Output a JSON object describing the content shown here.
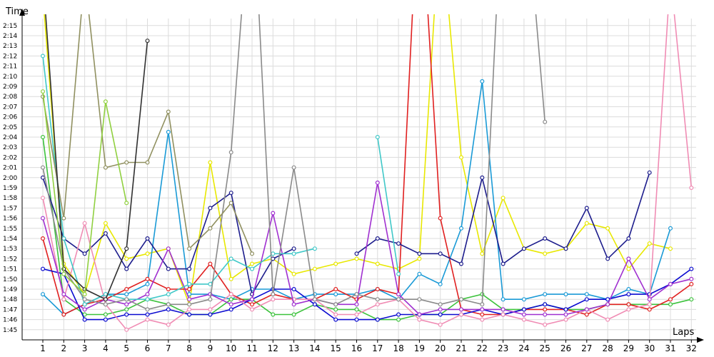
{
  "chart_data": {
    "type": "line",
    "xlabel": "Laps",
    "ylabel": "Time",
    "x": [
      1,
      2,
      3,
      4,
      5,
      6,
      7,
      8,
      9,
      10,
      11,
      12,
      13,
      14,
      15,
      16,
      17,
      18,
      19,
      20,
      21,
      22,
      23,
      24,
      25,
      26,
      27,
      28,
      29,
      30,
      31,
      32
    ],
    "y_ticks": [
      "1:45",
      "1:46",
      "1:47",
      "1:48",
      "1:49",
      "1:50",
      "1:51",
      "1:52",
      "1:53",
      "1:54",
      "1:55",
      "1:56",
      "1:57",
      "1:58",
      "1:59",
      "2:00",
      "2:01",
      "2:02",
      "2:03",
      "2:04",
      "2:05",
      "2:06",
      "2:07",
      "2:08",
      "2:09",
      "2:10",
      "2:11",
      "2:12",
      "2:13",
      "2:14",
      "2:15"
    ],
    "ylim_seconds": [
      104,
      136
    ],
    "grid": true,
    "series": [
      {
        "color": "#e8e800",
        "values": [
          138,
          111.5,
          108.5,
          115.5,
          112,
          112.5,
          113,
          107.5,
          121.5,
          110,
          111.5,
          112,
          110.5,
          111,
          111.5,
          112,
          111.5,
          111,
          112,
          146,
          122,
          112.5,
          118,
          113,
          112.5,
          113,
          115.5,
          115,
          111,
          113.5,
          113,
          null
        ]
      },
      {
        "color": "#1a9ad6",
        "values": [
          108.5,
          106.5,
          107.5,
          108.5,
          108.5,
          109.5,
          124.5,
          108.5,
          108.5,
          108,
          109,
          109,
          108,
          108.5,
          108.5,
          108.5,
          109,
          108,
          110.5,
          109.5,
          115,
          129.5,
          108,
          108,
          108.5,
          108.5,
          108.5,
          108,
          109,
          108.5,
          115,
          null
        ]
      },
      {
        "color": "#3cc23c",
        "values": [
          124,
          108,
          106.5,
          106.5,
          107,
          108,
          107.5,
          106.5,
          106.5,
          108,
          108,
          106.5,
          106.5,
          107.5,
          107,
          107,
          106,
          106,
          106.5,
          106.5,
          108,
          108.5,
          107,
          107,
          107.5,
          107,
          107,
          107.5,
          107.5,
          107.5,
          107.5,
          108
        ]
      },
      {
        "color": "#e02020",
        "values": [
          114,
          106.5,
          107.5,
          108,
          109,
          110,
          109,
          109,
          111.5,
          108.5,
          107.5,
          108.5,
          108,
          108,
          109,
          108,
          109,
          108.5,
          150,
          116,
          107,
          106.5,
          106.5,
          107,
          107,
          107,
          106.5,
          107.5,
          107.5,
          107,
          108,
          109.5
        ]
      },
      {
        "color": "#0a0ad0",
        "values": [
          111,
          110.5,
          106,
          106,
          106.5,
          106.5,
          107,
          106.5,
          106.5,
          107,
          108,
          109,
          109,
          107.5,
          106,
          106,
          106,
          106.5,
          106.5,
          106.5,
          106.5,
          107,
          106.5,
          107,
          107.5,
          107,
          108,
          108,
          108.5,
          108.5,
          109.5,
          111
        ]
      },
      {
        "color": "#1c1c8c",
        "values": [
          120,
          114,
          112.5,
          114.5,
          111,
          114,
          111,
          111,
          117,
          118.5,
          108.5,
          112,
          113,
          null,
          null,
          112.5,
          114,
          113.5,
          112.5,
          112.5,
          111.5,
          120,
          111.5,
          113,
          114,
          113,
          117,
          112,
          114,
          120.5,
          null,
          null
        ]
      },
      {
        "color": "#f08cb4",
        "values": [
          118,
          108,
          115.5,
          107.5,
          105,
          106,
          105.5,
          107,
          107,
          108.5,
          107,
          108,
          108,
          108,
          106.5,
          106.5,
          107.5,
          108,
          106,
          105.5,
          106.5,
          106,
          106.5,
          106,
          105.5,
          106,
          107,
          106,
          107,
          107.5,
          140,
          119
        ]
      },
      {
        "color": "#a030d0",
        "values": [
          116,
          108.5,
          107,
          108,
          107.5,
          108.5,
          113,
          108,
          108.5,
          107.5,
          108,
          116.5,
          107.5,
          108,
          107.5,
          107.5,
          119.5,
          108.5,
          106.5,
          107,
          107,
          107,
          107,
          106.5,
          106.5,
          106.5,
          107,
          107.5,
          112,
          108,
          109.5,
          110
        ]
      },
      {
        "color": "#40c8c8",
        "values": [
          132,
          114,
          107.5,
          108.5,
          108,
          108,
          108.5,
          109.5,
          109.5,
          112,
          111,
          112.5,
          112.5,
          113,
          null,
          null,
          124,
          110.5,
          null,
          null,
          null,
          null,
          null,
          null,
          null,
          null,
          null,
          null,
          null,
          null,
          null,
          null
        ]
      },
      {
        "color": "#8a8a8a",
        "values": [
          121,
          111,
          108,
          107.5,
          108,
          107,
          107.5,
          107.5,
          108,
          122.5,
          150,
          108.5,
          121,
          108,
          107.5,
          108.5,
          108,
          108,
          108,
          107.5,
          108,
          107.5,
          150,
          150,
          125.5,
          null,
          null,
          null,
          null,
          null,
          null,
          null
        ]
      },
      {
        "color": "#909060",
        "values": [
          128,
          116,
          140,
          121,
          121.5,
          121.5,
          126.5,
          113,
          115,
          117.5,
          112.5,
          null,
          null,
          null,
          null,
          null,
          null,
          null,
          null,
          null,
          null,
          null,
          null,
          null,
          null,
          null,
          null,
          null,
          null,
          null,
          null,
          null
        ]
      },
      {
        "color": "#303030",
        "values": [
          140,
          111,
          109,
          108,
          113,
          133.5,
          null,
          null,
          null,
          null,
          null,
          null,
          null,
          null,
          null,
          null,
          null,
          null,
          null,
          null,
          null,
          null,
          null,
          null,
          null,
          null,
          null,
          null,
          null,
          null,
          null,
          null
        ]
      },
      {
        "color": "#90d040",
        "values": [
          128.5,
          110.5,
          108.5,
          127.5,
          117.5,
          null,
          null,
          null,
          null,
          null,
          null,
          null,
          null,
          null,
          null,
          null,
          null,
          null,
          null,
          null,
          null,
          null,
          null,
          null,
          null,
          null,
          null,
          null,
          null,
          null,
          null,
          null
        ]
      }
    ]
  }
}
